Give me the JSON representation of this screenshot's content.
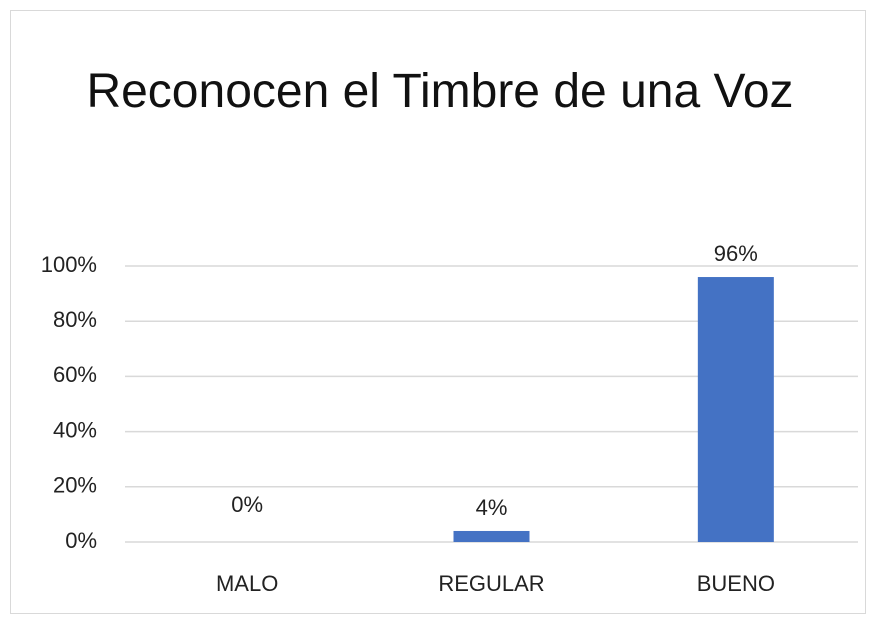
{
  "chart_data": {
    "type": "bar",
    "title": "Reconocen el Timbre de una Voz",
    "categories": [
      "MALO",
      "REGULAR",
      "BUENO"
    ],
    "values": [
      0,
      4,
      96
    ],
    "value_labels": [
      "0%",
      "4%",
      "96%"
    ],
    "color": "#4472c4",
    "ylim": [
      0,
      100
    ],
    "yticks": [
      {
        "value": 0,
        "label": "0%"
      },
      {
        "value": 20,
        "label": "20%"
      },
      {
        "value": 40,
        "label": "40%"
      },
      {
        "value": 60,
        "label": "60%"
      },
      {
        "value": 80,
        "label": "80%"
      },
      {
        "value": 100,
        "label": "100%"
      }
    ],
    "grid": true
  }
}
